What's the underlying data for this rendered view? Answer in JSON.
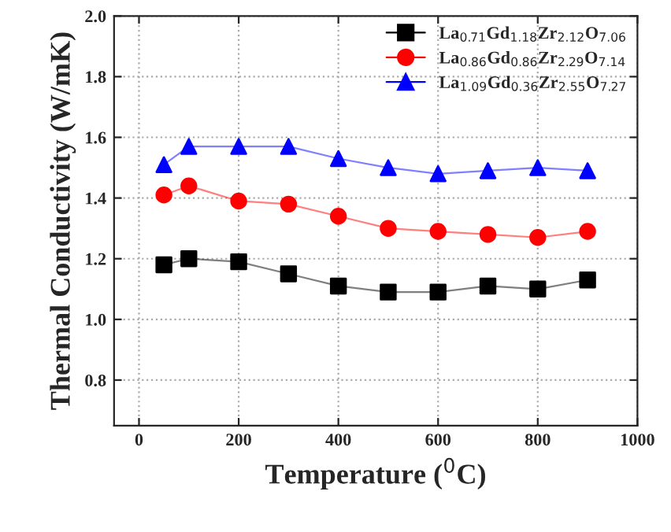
{
  "chart_data": {
    "type": "line",
    "xlabel": "Temperature ($^{0}$C)",
    "ylabel": "Thermal Conductivity (W/mK)",
    "x": [
      50,
      100,
      200,
      300,
      400,
      500,
      600,
      700,
      800,
      900
    ],
    "series": [
      {
        "name": "La$_{0.71}$Gd$_{1.18}$Zr$_{2.12}$O$_{7.06}$",
        "color": "#000000",
        "marker": "square",
        "values": [
          1.18,
          1.2,
          1.19,
          1.15,
          1.11,
          1.09,
          1.09,
          1.11,
          1.1,
          1.13
        ]
      },
      {
        "name": "La$_{0.86}$Gd$_{0.86}$Zr$_{2.29}$O$_{7.14}$",
        "color": "#ff0000",
        "marker": "circle",
        "values": [
          1.41,
          1.44,
          1.39,
          1.38,
          1.34,
          1.3,
          1.29,
          1.28,
          1.27,
          1.29
        ]
      },
      {
        "name": "La$_{1.09}$Gd$_{0.36}$Zr$_{2.55}$O$_{7.27}$",
        "color": "#0000ff",
        "marker": "triangle",
        "values": [
          1.51,
          1.57,
          1.57,
          1.57,
          1.53,
          1.5,
          1.48,
          1.49,
          1.5,
          1.49
        ]
      }
    ],
    "xlim": [
      -50,
      1000
    ],
    "xticks": [
      0,
      200,
      400,
      600,
      800,
      1000
    ],
    "ylim": [
      0.65,
      2.0
    ],
    "yticks": [
      {
        "value": 0.8,
        "label": "0.8"
      },
      {
        "value": 1.0,
        "label": "1.0"
      },
      {
        "value": 1.2,
        "label": "1.2"
      },
      {
        "value": 1.4,
        "label": "1.4"
      },
      {
        "value": 1.6,
        "label": "1.6"
      },
      {
        "value": 1.8,
        "label": "1.8"
      },
      {
        "value": 2.0,
        "label": "2.0"
      }
    ],
    "grid": true,
    "legend": "top right",
    "line_style": "solid"
  }
}
